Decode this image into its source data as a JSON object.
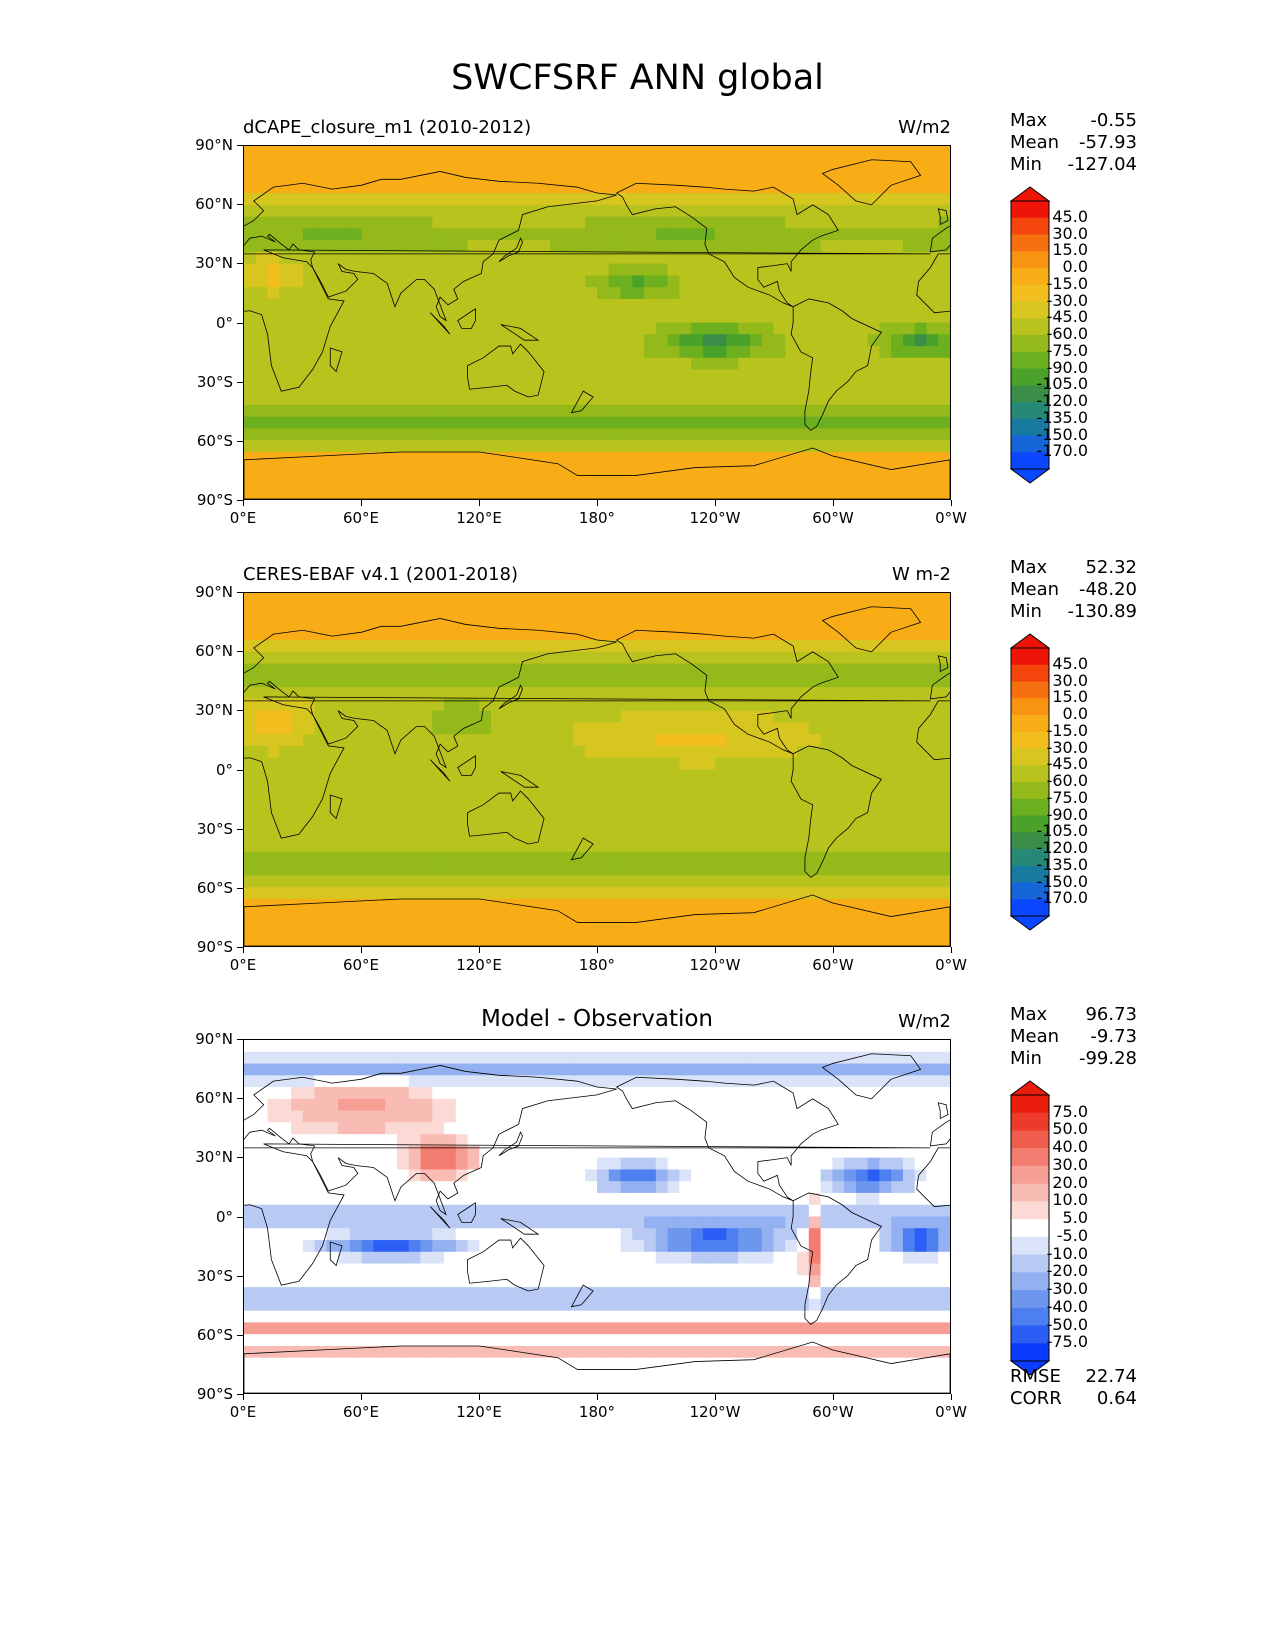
{
  "figure_title": "SWCFSRF ANN global",
  "panels": [
    {
      "title": "dCAPE_closure_m1 (2010-2012)",
      "units": "W/m2",
      "stats": {
        "max_label": "Max",
        "max": "-0.55",
        "mean_label": "Mean",
        "mean": "-57.93",
        "min_label": "Min",
        "min": "-127.04"
      },
      "colorbar_levels": [
        "45.0",
        "30.0",
        "15.0",
        "0.0",
        "-15.0",
        "-30.0",
        "-45.0",
        "-60.0",
        "-75.0",
        "-90.0",
        "-105.0",
        "-120.0",
        "-135.0",
        "-150.0",
        "-170.0"
      ]
    },
    {
      "title": "CERES-EBAF v4.1 (2001-2018)",
      "units": "W m-2",
      "stats": {
        "max_label": "Max",
        "max": "52.32",
        "mean_label": "Mean",
        "mean": "-48.20",
        "min_label": "Min",
        "min": "-130.89"
      },
      "colorbar_levels": [
        "45.0",
        "30.0",
        "15.0",
        "0.0",
        "-15.0",
        "-30.0",
        "-45.0",
        "-60.0",
        "-75.0",
        "-90.0",
        "-105.0",
        "-120.0",
        "-135.0",
        "-150.0",
        "-170.0"
      ]
    },
    {
      "title": "Model - Observation",
      "units": "W/m2",
      "stats": {
        "max_label": "Max",
        "max": "96.73",
        "mean_label": "Mean",
        "mean": "-9.73",
        "min_label": "Min",
        "min": "-99.28"
      },
      "colorbar_levels": [
        "75.0",
        "50.0",
        "40.0",
        "30.0",
        "20.0",
        "10.0",
        "5.0",
        "-5.0",
        "-10.0",
        "-20.0",
        "-30.0",
        "-40.0",
        "-50.0",
        "-75.0"
      ],
      "extra_stats": {
        "rmse_label": "RMSE",
        "rmse": "22.74",
        "corr_label": "CORR",
        "corr": "0.64"
      }
    }
  ],
  "axes": {
    "y_ticks": [
      "90°N",
      "60°N",
      "30°N",
      "0°",
      "30°S",
      "60°S",
      "90°S"
    ],
    "x_ticks": [
      "0°E",
      "60°E",
      "120°E",
      "180°",
      "120°W",
      "60°W",
      "0°W"
    ]
  },
  "chart_data": [
    {
      "type": "heatmap",
      "title": "dCAPE_closure_m1 (2010-2012)",
      "units": "W/m2",
      "variable": "SWCFSRF",
      "lon_range": [
        0,
        360
      ],
      "lat_range": [
        -90,
        90
      ],
      "color_scale": [
        "#0a47ff",
        "#1665d9",
        "#177a9f",
        "#268976",
        "#3b8e48",
        "#4aa22a",
        "#6cb01f",
        "#93b91a",
        "#b9c31e",
        "#d7c520",
        "#f2be1e",
        "#f8ac16",
        "#f99312",
        "#f77010",
        "#f3450c",
        "#ee1508"
      ],
      "levels": [
        -170,
        -150,
        -135,
        -120,
        -105,
        -90,
        -75,
        -60,
        -45,
        -30,
        -15,
        0,
        15,
        30,
        45
      ],
      "stats": {
        "max": -0.55,
        "mean": -57.93,
        "min": -127.04
      }
    },
    {
      "type": "heatmap",
      "title": "CERES-EBAF v4.1 (2001-2018)",
      "units": "W m-2",
      "variable": "SWCFSRF",
      "lon_range": [
        0,
        360
      ],
      "lat_range": [
        -90,
        90
      ],
      "levels": [
        -170,
        -150,
        -135,
        -120,
        -105,
        -90,
        -75,
        -60,
        -45,
        -30,
        -15,
        0,
        15,
        30,
        45
      ],
      "stats": {
        "max": 52.32,
        "mean": -48.2,
        "min": -130.89
      }
    },
    {
      "type": "heatmap",
      "title": "Model - Observation",
      "units": "W/m2",
      "variable": "SWCFSRF",
      "lon_range": [
        0,
        360
      ],
      "lat_range": [
        -90,
        90
      ],
      "color_scale": [
        "#0a3cff",
        "#2a5ef5",
        "#4d7ff0",
        "#6d96ee",
        "#93b0f0",
        "#b8c9f3",
        "#dae3f8",
        "#ffffff",
        "#fbdad6",
        "#f8bcb4",
        "#f69e93",
        "#f37d71",
        "#ef5d4e",
        "#ec3b2b",
        "#ea1c0b"
      ],
      "levels": [
        -75,
        -50,
        -40,
        -30,
        -20,
        -10,
        -5,
        5,
        10,
        20,
        30,
        40,
        50,
        75
      ],
      "stats": {
        "max": 96.73,
        "mean": -9.73,
        "min": -99.28,
        "rmse": 22.74,
        "corr": 0.64
      }
    }
  ]
}
